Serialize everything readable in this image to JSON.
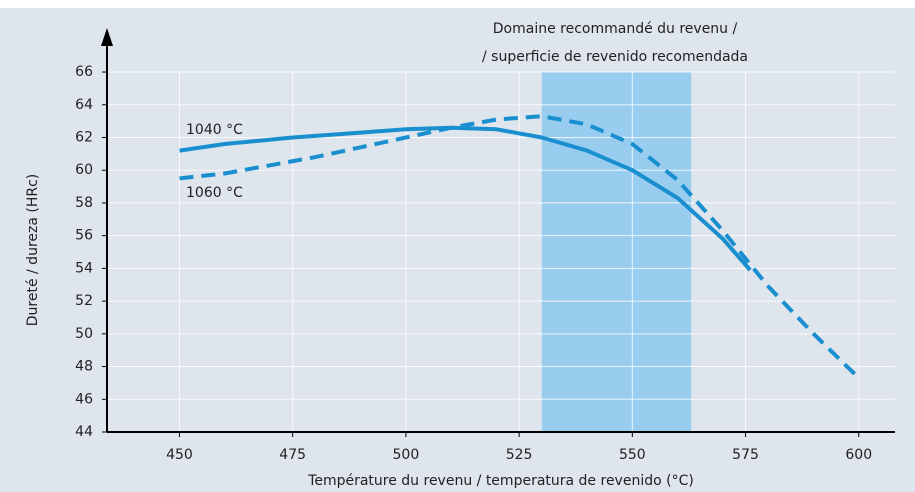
{
  "chart_data": {
    "type": "line",
    "xlabel": "Température du revenu / temperatura de revenido (°C)",
    "ylabel": "Dureté / dureza (HRc)",
    "annotation": [
      "Domaine recommandé du revenu /",
      "/ superficie de revenido recomendada"
    ],
    "shaded_range": [
      530,
      563
    ],
    "shaded_color": "#99cdf0",
    "xlim": [
      434,
      608
    ],
    "xticks": [
      450,
      475,
      500,
      525,
      550,
      575,
      600
    ],
    "ylim": [
      44,
      68.6
    ],
    "yticks": [
      44,
      46,
      48,
      50,
      52,
      54,
      56,
      58,
      60,
      62,
      64,
      66
    ],
    "grid": true,
    "series": [
      {
        "name": "1040 °C",
        "color": "#1a8fd0",
        "dash": false,
        "x": [
          450,
          460,
          475,
          490,
          500,
          510,
          520,
          530,
          540,
          550,
          560,
          570,
          576
        ],
        "values": [
          61.2,
          61.6,
          62.0,
          62.3,
          62.5,
          62.6,
          62.5,
          62.0,
          61.2,
          60.0,
          58.3,
          55.8,
          53.9
        ]
      },
      {
        "name": "1060 °C",
        "color": "#1a8fd0",
        "dash": true,
        "x": [
          450,
          460,
          470,
          480,
          490,
          500,
          510,
          520,
          530,
          540,
          550,
          560,
          570,
          580,
          590,
          600
        ],
        "values": [
          59.5,
          59.8,
          60.3,
          60.8,
          61.4,
          62.0,
          62.6,
          63.1,
          63.3,
          62.8,
          61.6,
          59.4,
          56.3,
          52.9,
          50.0,
          47.3
        ]
      }
    ]
  }
}
